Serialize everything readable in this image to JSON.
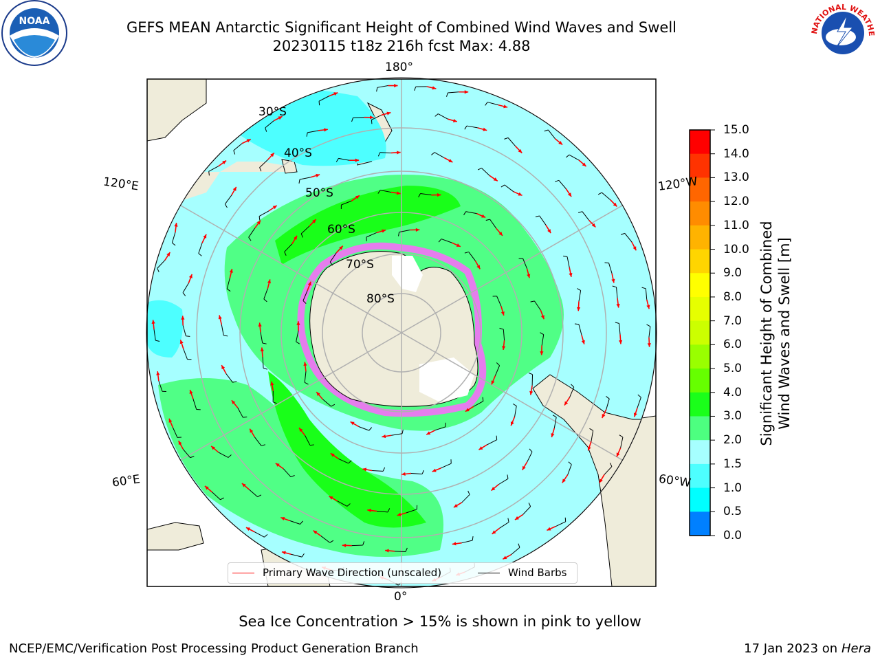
{
  "header": {
    "title_line1": "GEFS MEAN Antarctic Significant Height of Combined Wind Waves and Swell",
    "title_line2": "20230115 t18z 216h fcst   Max: 4.88",
    "left_logo": "noaa-logo",
    "right_logo": "national-weather-service-logo",
    "noaa_text": "NOAA",
    "nws_text": "NATIONAL WEATHER SERVICE"
  },
  "map": {
    "projection": "south-polar-stereographic",
    "longitude_labels": {
      "top": "180°",
      "bottom": "0°",
      "left_upper": "120°E",
      "left_lower": "60°E",
      "right_upper": "120°W",
      "right_lower": "60°W"
    },
    "latitude_labels": [
      "30°S",
      "40°S",
      "50°S",
      "60°S",
      "70°S",
      "80°S"
    ],
    "colors": {
      "land": "#efecda",
      "ocean_low": "#a6ffff",
      "ocean_mid": "#4bff80",
      "ocean_high": "#19ff19",
      "grid": "#b0b0b0",
      "wave_arrow": "#ff0000",
      "wind_barb": "#000000",
      "sea_ice": "#ff66ff"
    }
  },
  "legend": {
    "wave_label": "Primary Wave Direction (unscaled)",
    "barb_label": "Wind Barbs"
  },
  "colorbar": {
    "label_line1": "Significant Height of Combined",
    "label_line2": "Wind Waves and Swell [m]",
    "ticks": [
      "15.0",
      "14.0",
      "13.0",
      "12.0",
      "11.0",
      "10.0",
      "9.0",
      "8.0",
      "7.0",
      "6.0",
      "5.0",
      "4.0",
      "3.0",
      "2.0",
      "1.5",
      "1.0",
      "0.5",
      "0.0"
    ],
    "colors_top_to_bottom": [
      "#ff0000",
      "#ff3300",
      "#ff6600",
      "#ff8c00",
      "#ffb300",
      "#ffd500",
      "#ffff00",
      "#e6ff00",
      "#ccff00",
      "#99ff00",
      "#66ff00",
      "#1aff1a",
      "#4dff80",
      "#a6ffff",
      "#4dffff",
      "#00ffff",
      "#0080ff",
      "#0000ff"
    ]
  },
  "notes": {
    "ice_note": "Sea Ice Concentration > 15% is shown in pink to yellow",
    "footer_left": "NCEP/EMC/Verification Post Processing Product Generation Branch",
    "footer_date": "17 Jan 2023 on ",
    "footer_machine": "Hera"
  }
}
